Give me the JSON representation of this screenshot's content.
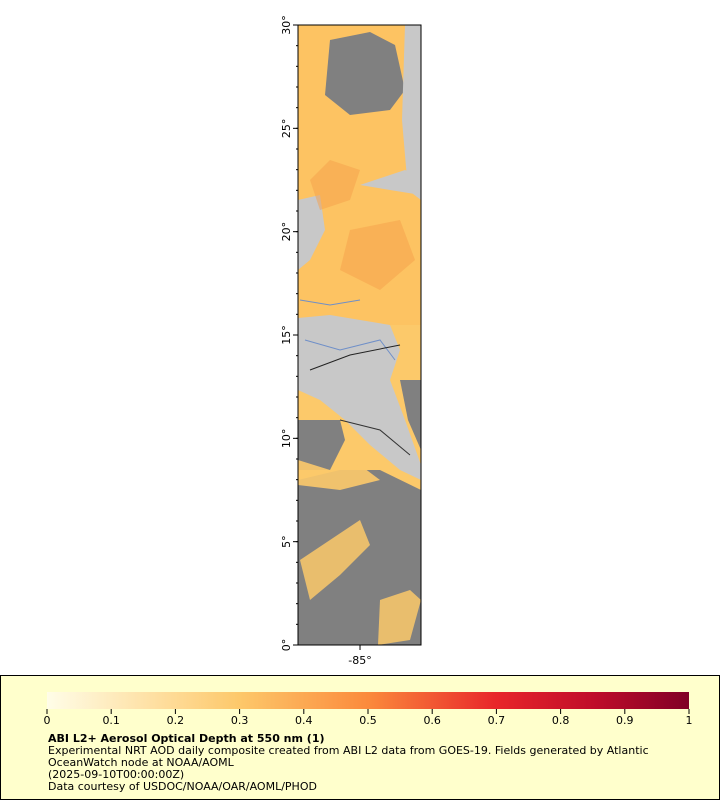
{
  "map": {
    "lat_ticks": [
      {
        "value": 0,
        "label": "0°"
      },
      {
        "value": 5,
        "label": "5°"
      },
      {
        "value": 10,
        "label": "10°"
      },
      {
        "value": 15,
        "label": "15°"
      },
      {
        "value": 20,
        "label": "20°"
      },
      {
        "value": 25,
        "label": "25°"
      },
      {
        "value": 30,
        "label": "30°"
      }
    ],
    "ylim": [
      0,
      30
    ],
    "lon_ticks": [
      {
        "value": -85,
        "label": "-85°"
      }
    ],
    "xlim": [
      -88.0,
      -82.05
    ]
  },
  "legend": {
    "colorbar_ticks": [
      0,
      0.1,
      0.2,
      0.3,
      0.4,
      0.5,
      0.6,
      0.7,
      0.8,
      0.9,
      1
    ],
    "colorbar_lim": [
      0,
      1
    ],
    "title": "ABI L2+ Aerosol Optical Depth at 550 nm (1)",
    "lines": [
      "Experimental NRT AOD daily composite created from ABI L2 data from GOES-19. Fields generated by Atlantic",
      "OceanWatch node at NOAA/AOML",
      "(2025-09-10T00:00:00Z)",
      "Data courtesy of USDOC/NOAA/OAR/AOML/PHOD"
    ]
  }
}
